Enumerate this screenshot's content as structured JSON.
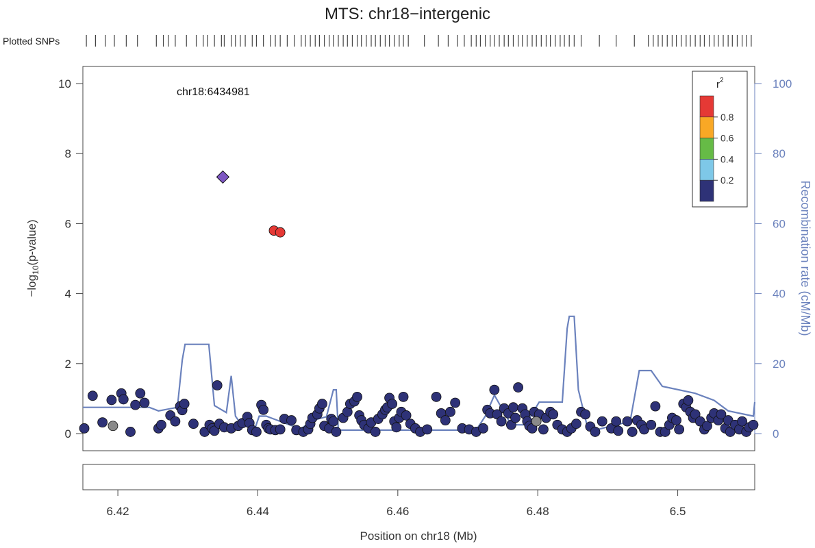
{
  "chart_data": {
    "type": "scatter",
    "title": "MTS: chr18−intergenic",
    "plotted_snps_label": "Plotted SNPs",
    "xlabel": "Position on chr18 (Mb)",
    "ylabel_left": "−log10(p-value)",
    "ylabel_right": "Recombination rate (cM/Mb)",
    "xlim": [
      6.415,
      6.511
    ],
    "ylim_left": [
      0,
      10
    ],
    "ylim_right": [
      0,
      100
    ],
    "x_ticks": [
      6.42,
      6.44,
      6.46,
      6.48,
      6.5
    ],
    "x_tick_labels": [
      "6.42",
      "6.44",
      "6.46",
      "6.48",
      "6.5"
    ],
    "y_ticks_left": [
      0,
      2,
      4,
      6,
      8,
      10
    ],
    "y_ticks_left_labels": [
      "0",
      "2",
      "4",
      "6",
      "8",
      "10"
    ],
    "y_ticks_right": [
      0,
      20,
      40,
      60,
      80,
      100
    ],
    "y_ticks_right_labels": [
      "0",
      "20",
      "40",
      "60",
      "80",
      "100"
    ],
    "grid": false,
    "lead_snp": {
      "label": "chr18:6434981",
      "x": 6.435,
      "y": 7.33,
      "color": "#7E57C2"
    },
    "legend": {
      "title": "r",
      "title_sup": "2",
      "placement": "top-right",
      "colors": [
        "#E53935",
        "#F9A825",
        "#66BB46",
        "#7EC8E8",
        "#2E3277"
      ],
      "tick_labels": [
        "0.8",
        "0.6",
        "0.4",
        "0.2"
      ]
    },
    "colors": {
      "low_ld": "#2E3277",
      "high_ld": "#E53935",
      "no_ld": "#8A8A8A",
      "recomb_line": "#6B82BD",
      "axis_right": "#6B82BD"
    },
    "snps_high_ld": [
      {
        "x": 6.4423,
        "y": 5.8
      },
      {
        "x": 6.4432,
        "y": 5.75
      }
    ],
    "snps_no_ld": [
      {
        "x": 6.4193,
        "y": 0.22
      },
      {
        "x": 6.4798,
        "y": 0.35
      }
    ],
    "snps": [
      [
        6.4152,
        0.15
      ],
      [
        6.4164,
        1.08
      ],
      [
        6.4178,
        0.32
      ],
      [
        6.4191,
        0.96
      ],
      [
        6.4205,
        1.15
      ],
      [
        6.4208,
        0.98
      ],
      [
        6.4218,
        0.05
      ],
      [
        6.4225,
        0.82
      ],
      [
        6.4232,
        1.15
      ],
      [
        6.4238,
        0.88
      ],
      [
        6.4258,
        0.15
      ],
      [
        6.4262,
        0.25
      ],
      [
        6.4275,
        0.52
      ],
      [
        6.4282,
        0.35
      ],
      [
        6.4289,
        0.78
      ],
      [
        6.4292,
        0.67
      ],
      [
        6.4295,
        0.85
      ],
      [
        6.4308,
        0.28
      ],
      [
        6.4324,
        0.05
      ],
      [
        6.4331,
        0.25
      ],
      [
        6.4335,
        0.15
      ],
      [
        6.4338,
        0.08
      ],
      [
        6.4342,
        1.38
      ],
      [
        6.4345,
        0.28
      ],
      [
        6.4352,
        0.18
      ],
      [
        6.4362,
        0.15
      ],
      [
        6.4372,
        0.22
      ],
      [
        6.4378,
        0.3
      ],
      [
        6.4385,
        0.48
      ],
      [
        6.4388,
        0.3
      ],
      [
        6.4392,
        0.1
      ],
      [
        6.4398,
        0.05
      ],
      [
        6.4405,
        0.82
      ],
      [
        6.4408,
        0.68
      ],
      [
        6.4412,
        0.25
      ],
      [
        6.4415,
        0.15
      ],
      [
        6.4418,
        0.12
      ],
      [
        6.4425,
        0.1
      ],
      [
        6.4432,
        0.12
      ],
      [
        6.4438,
        0.42
      ],
      [
        6.4448,
        0.38
      ],
      [
        6.4455,
        0.1
      ],
      [
        6.4465,
        0.05
      ],
      [
        6.4472,
        0.12
      ],
      [
        6.4475,
        0.28
      ],
      [
        6.4478,
        0.45
      ],
      [
        6.4485,
        0.55
      ],
      [
        6.4488,
        0.72
      ],
      [
        6.4492,
        0.85
      ],
      [
        6.4495,
        0.22
      ],
      [
        6.4502,
        0.15
      ],
      [
        6.4505,
        0.42
      ],
      [
        6.4508,
        0.35
      ],
      [
        6.4512,
        0.05
      ],
      [
        6.4522,
        0.45
      ],
      [
        6.4528,
        0.62
      ],
      [
        6.4532,
        0.85
      ],
      [
        6.4538,
        0.92
      ],
      [
        6.4542,
        1.05
      ],
      [
        6.4545,
        0.52
      ],
      [
        6.4548,
        0.38
      ],
      [
        6.4552,
        0.25
      ],
      [
        6.4558,
        0.15
      ],
      [
        6.4562,
        0.32
      ],
      [
        6.4568,
        0.05
      ],
      [
        6.4572,
        0.42
      ],
      [
        6.4578,
        0.55
      ],
      [
        6.4582,
        0.68
      ],
      [
        6.4585,
        0.75
      ],
      [
        6.4588,
        1.02
      ],
      [
        6.4592,
        0.85
      ],
      [
        6.4595,
        0.35
      ],
      [
        6.4598,
        0.18
      ],
      [
        6.4602,
        0.45
      ],
      [
        6.4605,
        0.62
      ],
      [
        6.4608,
        1.05
      ],
      [
        6.4612,
        0.52
      ],
      [
        6.4618,
        0.28
      ],
      [
        6.4625,
        0.15
      ],
      [
        6.4632,
        0.05
      ],
      [
        6.4642,
        0.12
      ],
      [
        6.4655,
        1.05
      ],
      [
        6.4662,
        0.58
      ],
      [
        6.4668,
        0.38
      ],
      [
        6.4675,
        0.62
      ],
      [
        6.4682,
        0.88
      ],
      [
        6.4692,
        0.15
      ],
      [
        6.4702,
        0.12
      ],
      [
        6.4712,
        0.05
      ],
      [
        6.4722,
        0.15
      ],
      [
        6.4728,
        0.68
      ],
      [
        6.4732,
        0.58
      ],
      [
        6.4738,
        1.25
      ],
      [
        6.4742,
        0.55
      ],
      [
        6.4748,
        0.35
      ],
      [
        6.4752,
        0.72
      ],
      [
        6.4758,
        0.58
      ],
      [
        6.4762,
        0.25
      ],
      [
        6.4765,
        0.75
      ],
      [
        6.4768,
        0.45
      ],
      [
        6.4772,
        1.32
      ],
      [
        6.4778,
        0.72
      ],
      [
        6.4782,
        0.55
      ],
      [
        6.4785,
        0.35
      ],
      [
        6.4788,
        0.22
      ],
      [
        6.4792,
        0.15
      ],
      [
        6.4795,
        0.62
      ],
      [
        6.4802,
        0.55
      ],
      [
        6.4808,
        0.12
      ],
      [
        6.4812,
        0.45
      ],
      [
        6.4818,
        0.62
      ],
      [
        6.4822,
        0.55
      ],
      [
        6.4828,
        0.25
      ],
      [
        6.4835,
        0.12
      ],
      [
        6.4842,
        0.05
      ],
      [
        6.4848,
        0.15
      ],
      [
        6.4855,
        0.28
      ],
      [
        6.4862,
        0.62
      ],
      [
        6.4868,
        0.55
      ],
      [
        6.4875,
        0.2
      ],
      [
        6.4882,
        0.05
      ],
      [
        6.4892,
        0.35
      ],
      [
        6.4905,
        0.15
      ],
      [
        6.4912,
        0.35
      ],
      [
        6.4915,
        0.08
      ],
      [
        6.4928,
        0.35
      ],
      [
        6.4935,
        0.05
      ],
      [
        6.4942,
        0.38
      ],
      [
        6.4948,
        0.25
      ],
      [
        6.4952,
        0.12
      ],
      [
        6.4962,
        0.25
      ],
      [
        6.4968,
        0.78
      ],
      [
        6.4975,
        0.05
      ],
      [
        6.4982,
        0.05
      ],
      [
        6.4988,
        0.25
      ],
      [
        6.4992,
        0.45
      ],
      [
        6.4998,
        0.38
      ],
      [
        6.5002,
        0.12
      ],
      [
        6.5008,
        0.85
      ],
      [
        6.5012,
        0.75
      ],
      [
        6.5015,
        0.95
      ],
      [
        6.5018,
        0.62
      ],
      [
        6.5022,
        0.45
      ],
      [
        6.5025,
        0.55
      ],
      [
        6.5032,
        0.35
      ],
      [
        6.5038,
        0.12
      ],
      [
        6.5042,
        0.22
      ],
      [
        6.5048,
        0.45
      ],
      [
        6.5052,
        0.58
      ],
      [
        6.5058,
        0.38
      ],
      [
        6.5062,
        0.55
      ],
      [
        6.5068,
        0.15
      ],
      [
        6.5072,
        0.38
      ],
      [
        6.5075,
        0.05
      ],
      [
        6.5082,
        0.25
      ],
      [
        6.5088,
        0.12
      ],
      [
        6.5092,
        0.35
      ],
      [
        6.5098,
        0.05
      ],
      [
        6.5102,
        0.18
      ],
      [
        6.5108,
        0.25
      ]
    ],
    "recombination_rate": {
      "x": [
        6.415,
        6.4245,
        6.4258,
        6.4285,
        6.4292,
        6.4296,
        6.433,
        6.4338,
        6.4355,
        6.4362,
        6.4368,
        6.4375,
        6.4395,
        6.4402,
        6.4412,
        6.4428,
        6.4448,
        6.4462,
        6.4478,
        6.4498,
        6.4508,
        6.4512,
        6.4515,
        6.4558,
        6.4625,
        6.4712,
        6.4725,
        6.4738,
        6.4762,
        6.4782,
        6.4802,
        6.4812,
        6.4835,
        6.4842,
        6.4845,
        6.4852,
        6.4858,
        6.4872,
        6.4882,
        6.4932,
        6.4945,
        6.4962,
        6.4978,
        6.5025,
        6.5052,
        6.5072,
        6.5108,
        6.511
      ],
      "y": [
        7.5,
        7.5,
        6.5,
        7.5,
        21,
        25.5,
        25.5,
        8,
        6,
        16.5,
        5,
        3,
        1,
        5,
        5,
        3.8,
        2.3,
        1.4,
        3.8,
        4.8,
        12.5,
        12.5,
        1,
        1,
        1,
        1,
        5,
        11,
        2.5,
        2.5,
        9,
        9,
        9,
        30,
        33.5,
        33.5,
        12.5,
        1,
        1,
        3.5,
        18,
        18,
        13.5,
        11.5,
        9.5,
        6.5,
        5,
        9
      ]
    },
    "plotted_snp_positions": [
      6.4155,
      6.4168,
      6.4182,
      6.4195,
      6.4212,
      6.4228,
      6.4255,
      6.4265,
      6.4272,
      6.4282,
      6.4298,
      6.4312,
      6.4322,
      6.4328,
      6.4338,
      6.4348,
      6.4352,
      6.4362,
      6.4368,
      6.4375,
      6.4382,
      6.4392,
      6.4398,
      6.4408,
      6.4418,
      6.4425,
      6.4432,
      6.4442,
      6.4452,
      6.4462,
      6.4468,
      6.4475,
      6.4482,
      6.4488,
      6.4495,
      6.4502,
      6.4508,
      6.4515,
      6.4522,
      6.4528,
      6.4535,
      6.4542,
      6.4548,
      6.4555,
      6.4562,
      6.4568,
      6.4575,
      6.4582,
      6.4588,
      6.4595,
      6.4602,
      6.4608,
      6.4615,
      6.4638,
      6.4658,
      6.4672,
      6.4685,
      6.4695,
      6.4705,
      6.4712,
      6.4718,
      6.4725,
      6.4732,
      6.4738,
      6.4745,
      6.4752,
      6.4758,
      6.4765,
      6.4772,
      6.4778,
      6.4785,
      6.4792,
      6.4798,
      6.4805,
      6.4812,
      6.4818,
      6.4825,
      6.4832,
      6.4838,
      6.4845,
      6.4852,
      6.4862,
      6.4888,
      6.4912,
      6.4938,
      6.4958,
      6.4965,
      6.4972,
      6.4978,
      6.4985,
      6.4992,
      6.4998,
      6.5005,
      6.5012,
      6.5018,
      6.5025,
      6.5032,
      6.5038,
      6.5045,
      6.5052,
      6.5058,
      6.5065,
      6.5072,
      6.5078,
      6.5085,
      6.5092,
      6.5098,
      6.5105
    ]
  }
}
